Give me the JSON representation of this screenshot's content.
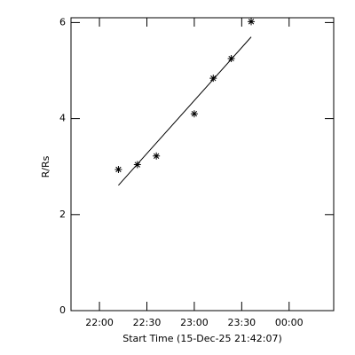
{
  "chart_data": {
    "type": "scatter",
    "xlabel": "Start Time (15-Dec-25 21:42:07)",
    "ylabel": "R/Rs",
    "xlim": [
      21.7,
      24.47
    ],
    "ylim": [
      0,
      6.1
    ],
    "xticks": [
      {
        "value": 22.0,
        "label": "22:00"
      },
      {
        "value": 22.5,
        "label": "22:30"
      },
      {
        "value": 23.0,
        "label": "23:00"
      },
      {
        "value": 23.5,
        "label": "23:30"
      },
      {
        "value": 24.0,
        "label": "00:00"
      }
    ],
    "yticks": [
      0,
      2,
      4,
      6
    ],
    "series": [
      {
        "x": [
          22.2,
          22.4,
          22.6,
          23.0,
          23.2,
          23.39,
          23.6
        ],
        "values": [
          2.94,
          3.04,
          3.22,
          4.1,
          4.84,
          5.25,
          6.02
        ],
        "color": "#000000",
        "marker": "asterisk"
      },
      {
        "x": [
          22.2,
          23.6
        ],
        "values": [
          2.61,
          5.7
        ],
        "color": "#000000",
        "marker": "line"
      }
    ]
  }
}
